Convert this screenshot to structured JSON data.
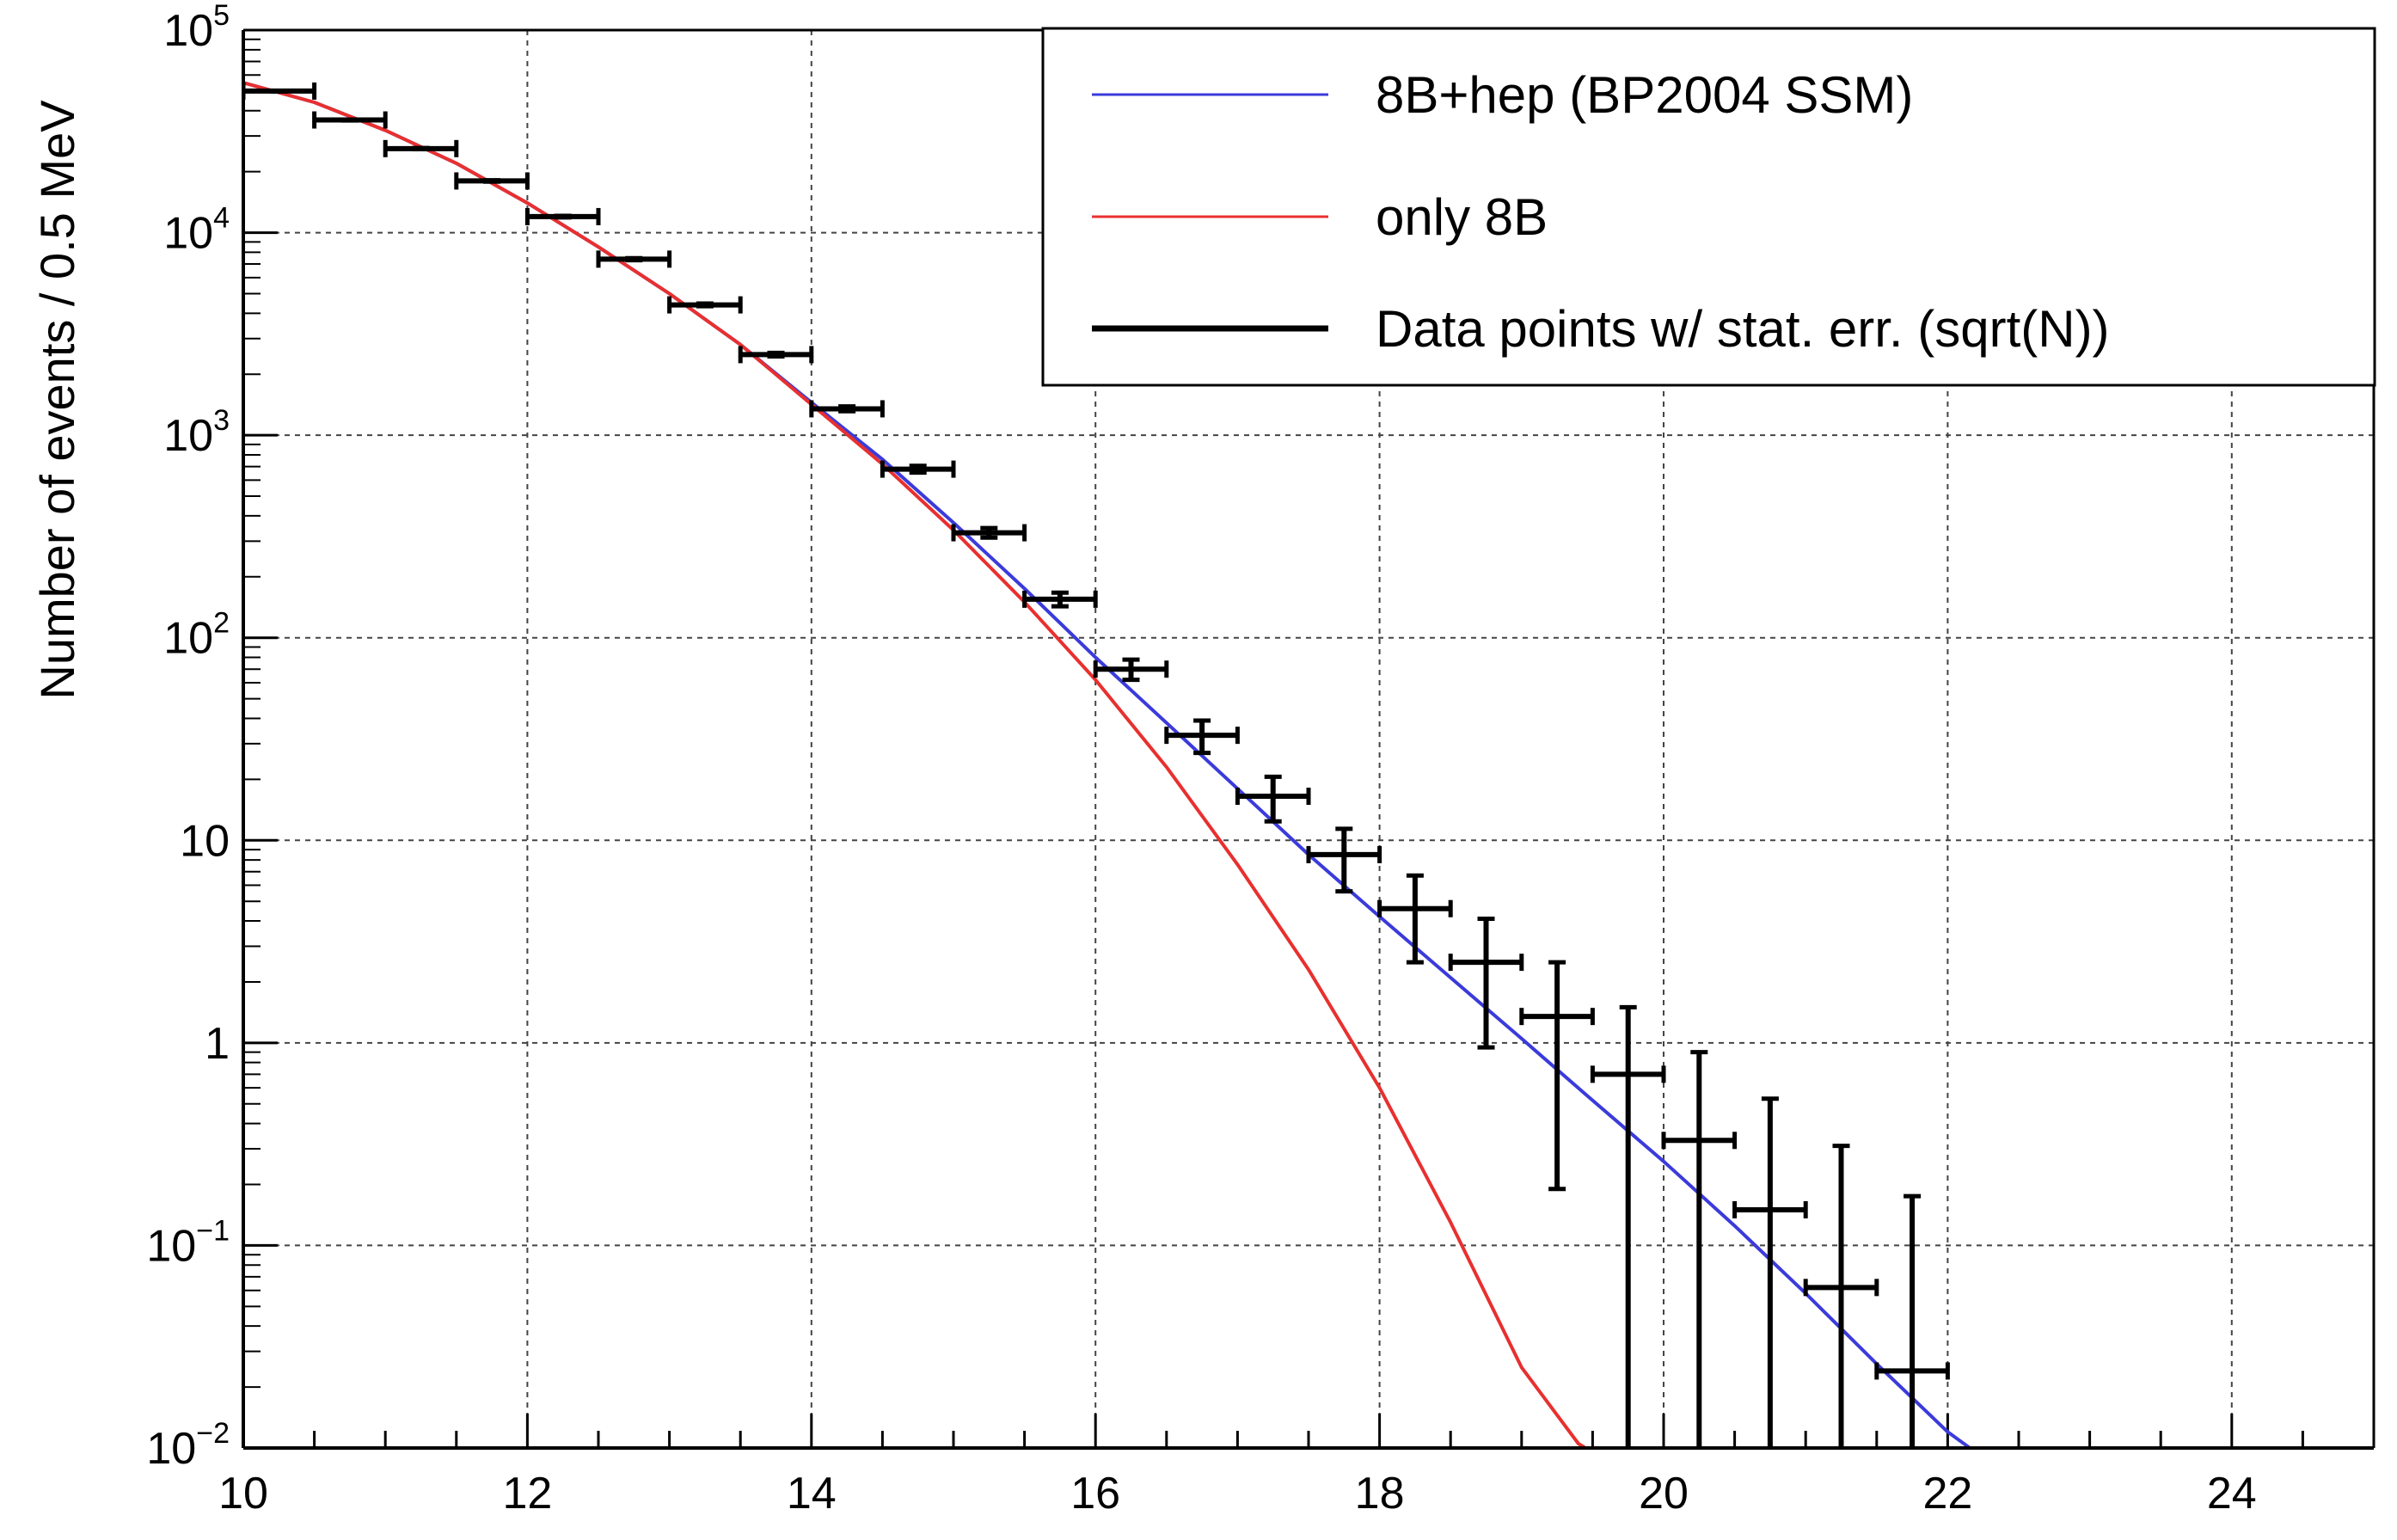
{
  "chart_data": {
    "type": "scatter",
    "title": "",
    "xlabel": "",
    "ylabel": "Number of events / 0.5 MeV",
    "xlim": [
      10,
      25
    ],
    "ylim": [
      0.01,
      100000
    ],
    "yscale": "log",
    "grid": true,
    "legend_position": "top-right",
    "x_ticks": [
      "10",
      "12",
      "14",
      "16",
      "18",
      "20",
      "22",
      "24"
    ],
    "y_ticks": [
      {
        "base": "10",
        "exp": "−2",
        "value": 0.01
      },
      {
        "base": "10",
        "exp": "−1",
        "value": 0.1
      },
      {
        "base": "1",
        "exp": "",
        "value": 1
      },
      {
        "base": "10",
        "exp": "",
        "value": 10
      },
      {
        "base": "10",
        "exp": "2",
        "value": 100
      },
      {
        "base": "10",
        "exp": "3",
        "value": 1000
      },
      {
        "base": "10",
        "exp": "4",
        "value": 10000
      },
      {
        "base": "10",
        "exp": "5",
        "value": 100000
      }
    ],
    "series": [
      {
        "name": "8B+hep (BP2004 SSM)",
        "kind": "line",
        "color": "#3b3bdb",
        "x": [
          10,
          10.5,
          11,
          11.5,
          12,
          12.5,
          13,
          13.5,
          14,
          14.5,
          15,
          15.5,
          16,
          16.5,
          17,
          17.5,
          18,
          18.5,
          19,
          19.5,
          20,
          20.5,
          21,
          21.5,
          22,
          22.2
        ],
        "y": [
          55000,
          44000,
          32000,
          22000,
          14000,
          8500,
          5000,
          2800,
          1450,
          760,
          370,
          175,
          80,
          38,
          18,
          8.5,
          4.2,
          2.1,
          1.05,
          0.52,
          0.26,
          0.125,
          0.058,
          0.026,
          0.012,
          0.0095
        ]
      },
      {
        "name": "only 8B",
        "kind": "line",
        "color": "#e8302f",
        "x": [
          10,
          10.5,
          11,
          11.5,
          12,
          12.5,
          13,
          13.5,
          14,
          14.5,
          15,
          15.5,
          16,
          16.5,
          17,
          17.5,
          18,
          18.5,
          19,
          19.4,
          19.45,
          25
        ],
        "y": [
          55000,
          44000,
          32000,
          22000,
          14000,
          8500,
          5000,
          2800,
          1420,
          720,
          340,
          150,
          62,
          23,
          7.6,
          2.3,
          0.6,
          0.13,
          0.025,
          0.0105,
          0.01,
          0.01
        ]
      },
      {
        "name": "Data points w/ stat. err. (sqrt(N))",
        "kind": "errorbar",
        "color": "#000000",
        "x": [
          10.25,
          10.75,
          11.25,
          11.75,
          12.25,
          12.75,
          13.25,
          13.75,
          14.25,
          14.75,
          15.25,
          15.75,
          16.25,
          16.75,
          17.25,
          17.75,
          18.25,
          18.75,
          19.25,
          19.75,
          20.25,
          20.75,
          21.25,
          21.75
        ],
        "y": [
          50000,
          36000,
          26000,
          18000,
          12000,
          7400,
          4400,
          2500,
          1350,
          680,
          330,
          155,
          70,
          33,
          16.5,
          8.5,
          4.6,
          2.5,
          1.35,
          0.7,
          0.33,
          0.15,
          0.062,
          0.024
        ],
        "y_low": [
          49776,
          35810,
          25839,
          17866,
          11890,
          7314,
          4334,
          2450,
          1313,
          654,
          312,
          143,
          62,
          27,
          12.4,
          5.6,
          2.5,
          0.95,
          0.19,
          0,
          0,
          0,
          0,
          0
        ],
        "y_high": [
          50224,
          36190,
          26161,
          18134,
          12110,
          7486,
          4466,
          2550,
          1387,
          706,
          348,
          167,
          78,
          39,
          20.6,
          11.4,
          6.7,
          4.1,
          2.5,
          1.5,
          0.9,
          0.53,
          0.31,
          0.175
        ],
        "x_halfwidth": 0.25
      }
    ]
  }
}
